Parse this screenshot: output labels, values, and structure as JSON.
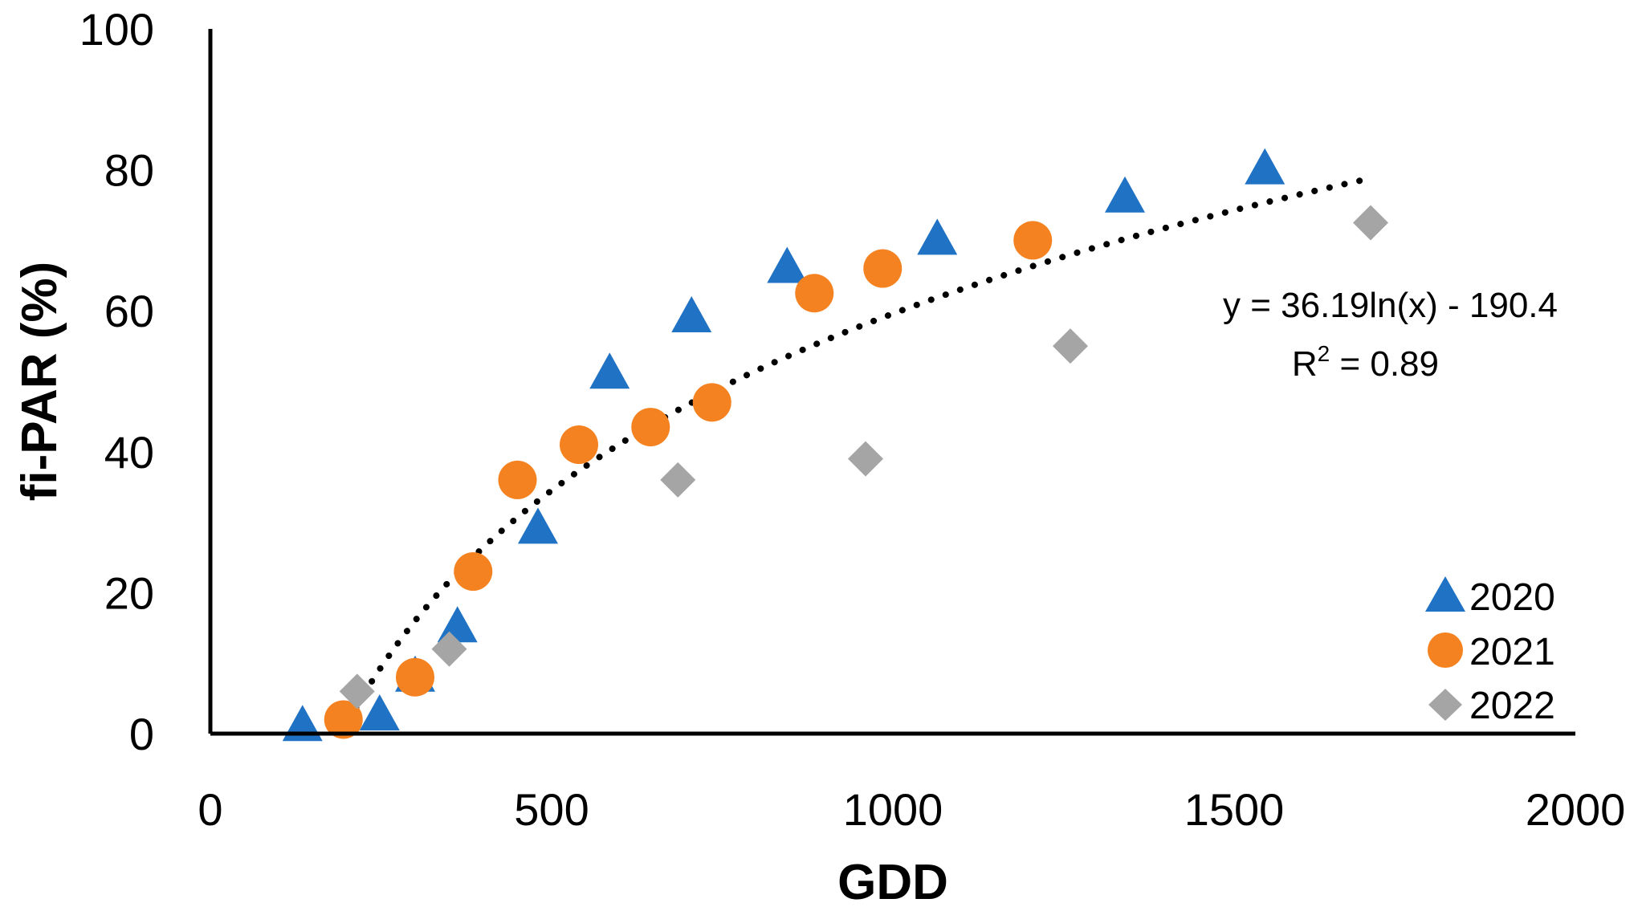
{
  "chart_data": {
    "type": "scatter",
    "title": "",
    "xlabel": "GDD",
    "ylabel": "fi-PAR (%)",
    "xlim": [
      0,
      2000
    ],
    "ylim": [
      0,
      100
    ],
    "xticks": [
      0,
      500,
      1000,
      1500,
      2000
    ],
    "yticks": [
      0,
      20,
      40,
      60,
      80,
      100
    ],
    "grid": false,
    "legend_position": "bottom-right",
    "series": [
      {
        "name": "2020",
        "marker": "triangle",
        "color": "#1f72c4",
        "points": [
          [
            135,
            1
          ],
          [
            248,
            2.5
          ],
          [
            300,
            8
          ],
          [
            362,
            15
          ],
          [
            480,
            29
          ],
          [
            585,
            51
          ],
          [
            705,
            59
          ],
          [
            845,
            66
          ],
          [
            1065,
            70
          ],
          [
            1340,
            76
          ],
          [
            1545,
            80
          ]
        ]
      },
      {
        "name": "2021",
        "marker": "circle",
        "color": "#f58220",
        "points": [
          [
            195,
            2
          ],
          [
            300,
            8
          ],
          [
            385,
            23
          ],
          [
            450,
            36
          ],
          [
            540,
            41
          ],
          [
            645,
            43.5
          ],
          [
            735,
            47
          ],
          [
            885,
            62.5
          ],
          [
            985,
            66
          ],
          [
            1205,
            70
          ]
        ]
      },
      {
        "name": "2022",
        "marker": "diamond",
        "color": "#a5a5a5",
        "points": [
          [
            215,
            6
          ],
          [
            350,
            12
          ],
          [
            685,
            36
          ],
          [
            960,
            39
          ],
          [
            1260,
            55
          ],
          [
            1700,
            72.5
          ]
        ]
      }
    ],
    "trendline": {
      "type": "log",
      "a": 36.19,
      "b": -190.4,
      "x_range": [
        190,
        1690
      ],
      "style": "dotted",
      "color": "#000000"
    },
    "annotations": {
      "equation": "y = 36.19ln(x) - 190.4",
      "r2_prefix": "R",
      "r2_sup": "2",
      "r2_suffix": " = 0.89"
    }
  }
}
